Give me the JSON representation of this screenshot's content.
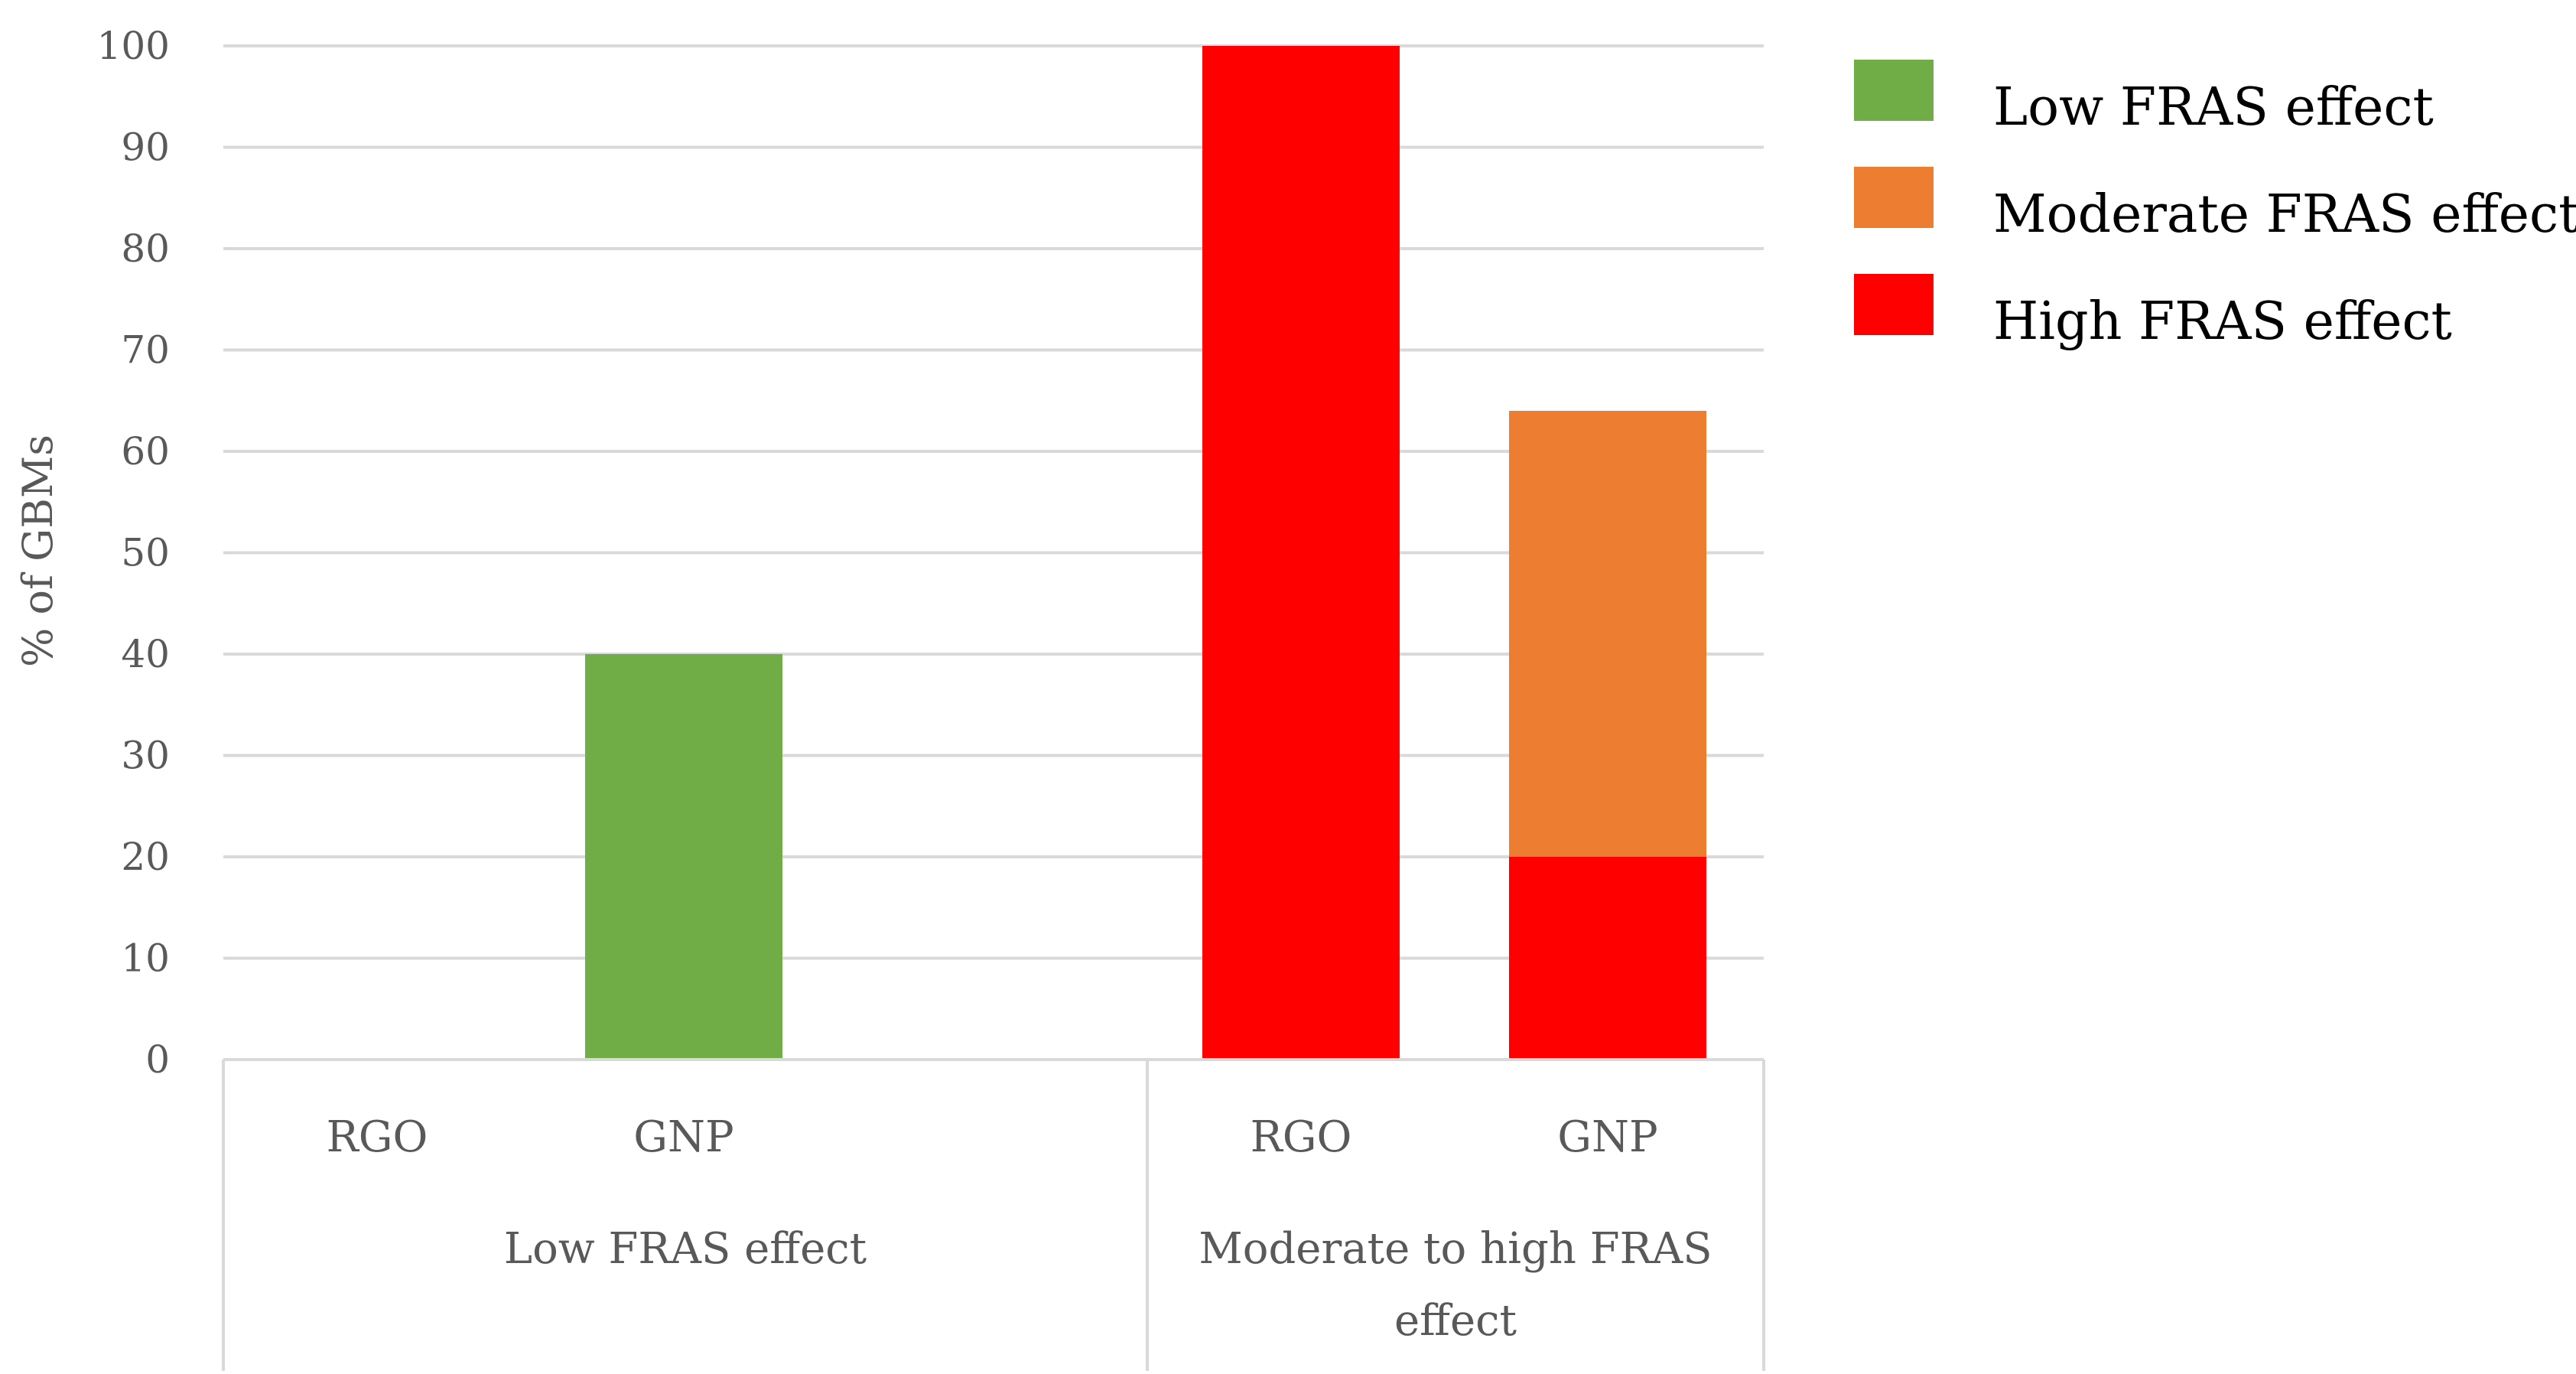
{
  "chart_data": {
    "type": "bar",
    "stacked": true,
    "title": "",
    "xlabel": "",
    "ylabel": "% of GBMs",
    "ylim": [
      0,
      100
    ],
    "yticks": [
      0,
      10,
      20,
      30,
      40,
      50,
      60,
      70,
      80,
      90,
      100
    ],
    "grid": true,
    "legend_position": "top-right",
    "groups": [
      {
        "label": "Low FRAS effect",
        "categories": [
          "RGO",
          "GNP"
        ]
      },
      {
        "label": "Moderate to high FRAS effect",
        "label_lines": [
          "Moderate to high FRAS",
          "effect"
        ],
        "categories": [
          "RGO",
          "GNP"
        ]
      }
    ],
    "series": [
      {
        "name": "High FRAS effect",
        "color": "#FF0000",
        "values": [
          0,
          0,
          100,
          20
        ]
      },
      {
        "name": "Moderate FRAS effect",
        "color": "#ED7D31",
        "values": [
          0,
          0,
          0,
          44
        ]
      },
      {
        "name": "Low FRAS effect",
        "color": "#70AD47",
        "values": [
          0,
          40,
          0,
          0
        ]
      }
    ],
    "legend_order": [
      "Low FRAS effect",
      "Moderate FRAS effect",
      "High FRAS effect"
    ],
    "colors": {
      "grid": "#D9D9D9",
      "axis": "#D9D9D9",
      "text": "#595959"
    }
  }
}
